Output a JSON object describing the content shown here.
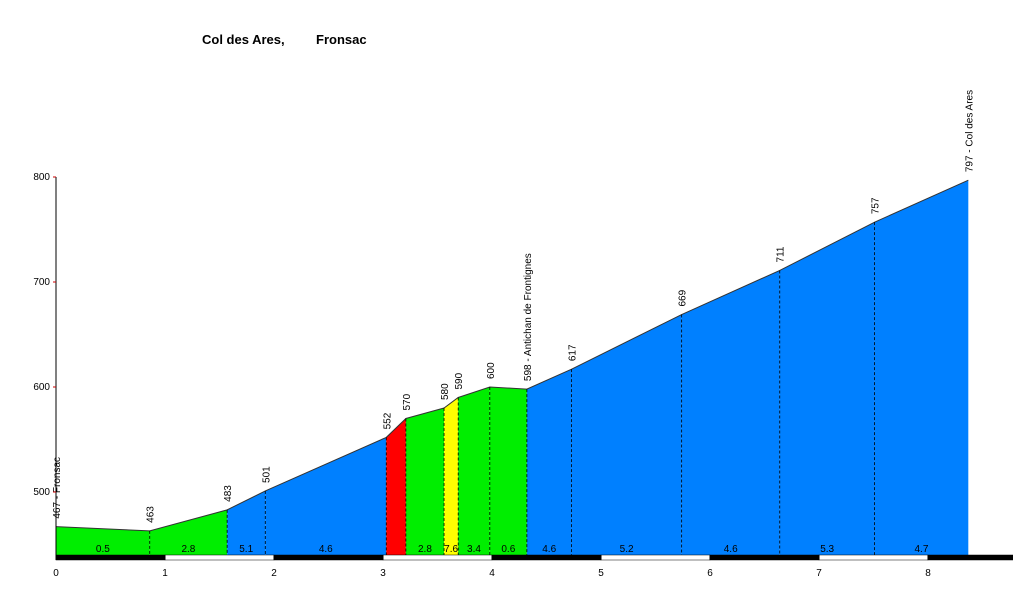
{
  "chart_data": {
    "type": "profile",
    "title": "Col des Ares,",
    "subtitle": "Fronsac",
    "x": [
      0,
      0.86,
      1.57,
      1.92,
      3.03,
      3.21,
      3.56,
      3.69,
      3.98,
      4.32,
      4.73,
      5.74,
      6.64,
      7.51,
      8.37
    ],
    "values": [
      467,
      463,
      483,
      501,
      552,
      570,
      580,
      590,
      600,
      598,
      617,
      669,
      711,
      757,
      797
    ],
    "value_labels": [
      "467 - Fronsac",
      "463",
      "483",
      "501",
      "552",
      "570",
      "580",
      "590",
      "600",
      "598 - Antichan de Frontignes",
      "617",
      "669",
      "711",
      "757",
      "797 - Col des Ares"
    ],
    "segments": [
      {
        "gradient": 0.5,
        "color": "#00ee00"
      },
      {
        "gradient": 2.8,
        "color": "#00ee00"
      },
      {
        "gradient": 5.1,
        "color": "#0080ff"
      },
      {
        "gradient": 4.6,
        "color": "#0080ff"
      },
      {
        "gradient": null,
        "color": "#ff0000"
      },
      {
        "gradient": 2.8,
        "color": "#00ee00"
      },
      {
        "gradient": 7.6,
        "color": "#ffff00"
      },
      {
        "gradient": 3.4,
        "color": "#00ee00"
      },
      {
        "gradient": 0.6,
        "color": "#00ee00"
      },
      {
        "gradient": 4.6,
        "color": "#0080ff"
      },
      {
        "gradient": 5.2,
        "color": "#0080ff"
      },
      {
        "gradient": 4.6,
        "color": "#0080ff"
      },
      {
        "gradient": 5.3,
        "color": "#0080ff"
      },
      {
        "gradient": 4.7,
        "color": "#0080ff"
      }
    ],
    "xlim": [
      0,
      8.78
    ],
    "ylim": [
      440,
      800
    ],
    "xticks": [
      0,
      1,
      2,
      3,
      4,
      5,
      6,
      7,
      8
    ],
    "yticks": [
      500,
      600,
      700,
      800
    ]
  }
}
